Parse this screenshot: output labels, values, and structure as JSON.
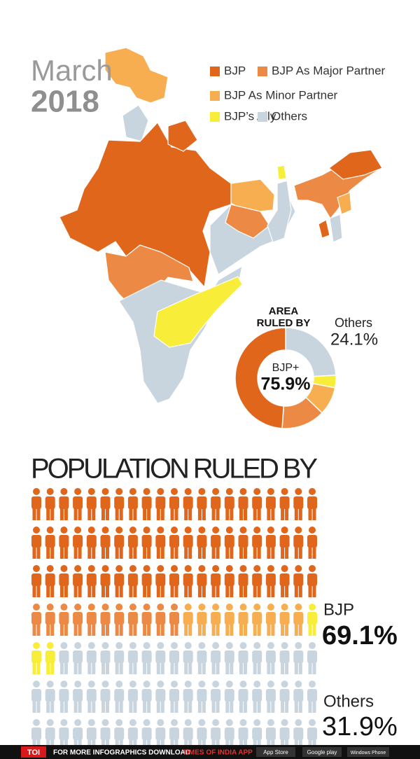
{
  "header": {
    "month": "March",
    "year": "2018"
  },
  "legend": [
    {
      "name": "BJP",
      "color": "#e0661c"
    },
    {
      "name": "BJP As Major Partner",
      "color": "#ec8a45"
    },
    {
      "name": "BJP As Minor Partner",
      "color": "#f6ae50"
    },
    {
      "name": "BJP’s Ally",
      "color": "#f8ee3a"
    },
    {
      "name": "Others",
      "color": "#c8d5df"
    }
  ],
  "chart_data": [
    {
      "type": "donut",
      "title": "AREA RULED BY",
      "series": [
        {
          "name": "Others",
          "color": "#c8d5df",
          "value": 24.1,
          "value_label": "24.1%"
        },
        {
          "name": "BJP’s Ally",
          "color": "#f8ee3a",
          "value": 4
        },
        {
          "name": "BJP As Minor Partner",
          "color": "#f6ae50",
          "value": 9
        },
        {
          "name": "BJP As Major Partner",
          "color": "#ec8a45",
          "value": 14
        },
        {
          "name": "BJP",
          "color": "#e0661c",
          "value": 48.9
        }
      ],
      "center": {
        "label": "BJP+",
        "value": 75.9,
        "value_label": "75.9%"
      }
    },
    {
      "type": "pictogram",
      "title": "POPULATION RULED BY",
      "series": [
        {
          "name": "BJP",
          "color": "#e0661c",
          "value": 63
        },
        {
          "name": "BJP As Major Partner",
          "color": "#ec8a45",
          "value": 11
        },
        {
          "name": "BJP As Minor Partner",
          "color": "#f6ae50",
          "value": 9
        },
        {
          "name": "BJP’s Ally",
          "color": "#f8ee3a",
          "value": 3
        },
        {
          "name": "Others",
          "color": "#c8d5df",
          "value": 61
        }
      ],
      "annotations": [
        {
          "label": "BJP",
          "value": 69.1,
          "value_label": "69.1%"
        },
        {
          "label": "Others",
          "value": 31.9,
          "value_label": "31.9%"
        }
      ]
    }
  ],
  "footer": {
    "logo": "TOI",
    "text": "FOR MORE INFOGRAPHICS DOWNLOAD",
    "app": "TIMES OF INDIA APP",
    "stores": [
      "App Store",
      "Google play",
      "Windows Phone"
    ]
  }
}
